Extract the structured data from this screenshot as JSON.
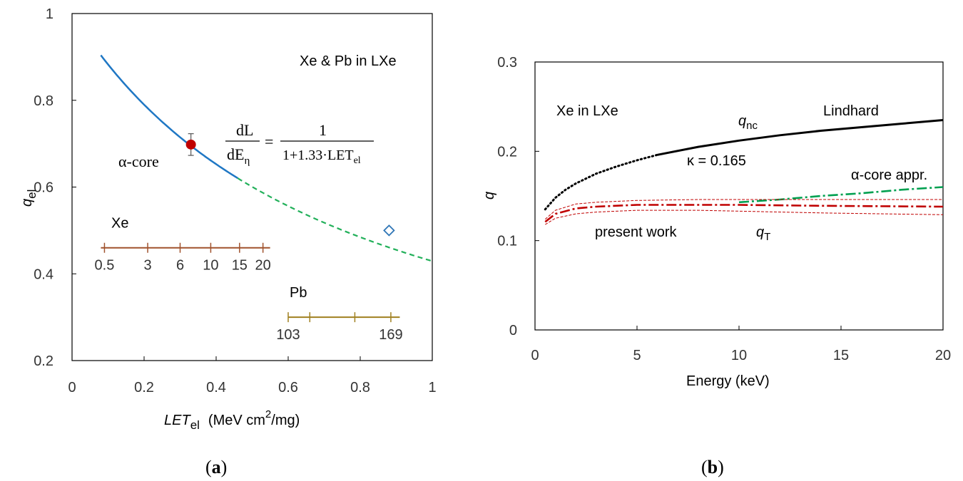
{
  "chart_data": [
    {
      "panel": "a",
      "type": "line",
      "caption": "(a)",
      "caption_letter": "a",
      "annotation": "Xe & Pb in LXe",
      "xlabel_main": "LET",
      "xlabel_sub": "el",
      "xlabel_units": "(MeV cm",
      "xlabel_units_sup": "2",
      "xlabel_units_end": "/mg)",
      "ylabel_main": "q",
      "ylabel_sub": "el",
      "xlim": [
        0,
        1
      ],
      "ylim": [
        0.2,
        1
      ],
      "xticks": [
        0,
        0.2,
        0.4,
        0.6,
        0.8,
        1
      ],
      "xtick_labels": [
        "0",
        "0.2",
        "0.4",
        "0.6",
        "0.8",
        "1"
      ],
      "yticks": [
        0.2,
        0.4,
        0.6,
        0.8,
        1
      ],
      "ytick_labels": [
        "0.2",
        "0.4",
        "0.6",
        "0.8",
        "1"
      ],
      "formula": {
        "lhs_num": "dL",
        "lhs_den": "dE",
        "lhs_den_sub": "η",
        "equals": "=",
        "rhs_num": "1",
        "rhs_den": "1+1.33·LET",
        "rhs_den_sub": "el"
      },
      "model": {
        "function": "1/(1+1.33*x)",
        "solid_range": [
          0.08,
          0.46
        ],
        "dashed_range": [
          0.46,
          1.0
        ]
      },
      "series": [
        {
          "name": "α-core",
          "label_text": "α-core",
          "type": "point",
          "x": 0.33,
          "y": 0.698,
          "err": 0.025,
          "color": "#c00000"
        },
        {
          "name": "open-diamond",
          "type": "point",
          "x": 0.88,
          "y": 0.5,
          "color": "#2e75b6"
        }
      ],
      "energy_scales": [
        {
          "label": "Xe",
          "y": 0.46,
          "x_start": 0.08,
          "x_end": 0.53,
          "ticks": [
            0.09,
            0.21,
            0.3,
            0.385,
            0.465,
            0.53
          ],
          "tick_labels": [
            {
              "text": "0.5",
              "x": 0.09
            },
            {
              "text": "3",
              "x": 0.21
            },
            {
              "text": "6",
              "x": 0.3
            },
            {
              "text": "10",
              "x": 0.385
            },
            {
              "text": "15",
              "x": 0.465
            },
            {
              "text": "20",
              "x": 0.53
            }
          ],
          "color": "#a0522d"
        },
        {
          "label": "Pb",
          "y": 0.3,
          "x_start": 0.6,
          "x_end": 0.89,
          "ticks": [
            0.6,
            0.66,
            0.785,
            0.885
          ],
          "tick_labels": [
            {
              "text": "103",
              "x": 0.6
            },
            {
              "text": "169",
              "x": 0.885
            }
          ],
          "color": "#a08020"
        }
      ]
    },
    {
      "panel": "b",
      "type": "line",
      "caption": "(b)",
      "caption_letter": "b",
      "annotation": "Xe in LXe",
      "xlabel": "Energy (keV)",
      "ylabel": "q",
      "xlim": [
        0,
        20
      ],
      "ylim": [
        0,
        0.3
      ],
      "xticks": [
        0,
        5,
        10,
        15,
        20
      ],
      "xtick_labels": [
        "0",
        "5",
        "10",
        "15",
        "20"
      ],
      "yticks": [
        0,
        0.1,
        0.2,
        0.3
      ],
      "ytick_labels": [
        "0",
        "0.1",
        "0.2",
        "0.3"
      ],
      "labels": {
        "lindhard": "Lindhard",
        "qnc_main": "q",
        "qnc_sub": "nc",
        "kappa": "κ = 0.165",
        "alpha_core": "α-core appr.",
        "present_work": "present work",
        "qt_main": "q",
        "qt_sub": "T"
      },
      "series": [
        {
          "name": "Lindhard dotted",
          "style": "dotted",
          "color": "#000000",
          "x": [
            0.5,
            1,
            1.5,
            2,
            3,
            4,
            5,
            6
          ],
          "y": [
            0.135,
            0.148,
            0.157,
            0.164,
            0.175,
            0.183,
            0.19,
            0.196
          ]
        },
        {
          "name": "Lindhard solid",
          "style": "solid",
          "color": "#000000",
          "x": [
            6,
            8,
            10,
            12,
            14,
            16,
            18,
            20
          ],
          "y": [
            0.196,
            0.205,
            0.212,
            0.218,
            0.223,
            0.227,
            0.231,
            0.235
          ]
        },
        {
          "name": "α-core appr.",
          "style": "dashdot",
          "color": "#00a050",
          "x": [
            10,
            12,
            14,
            16,
            18,
            20
          ],
          "y": [
            0.143,
            0.146,
            0.15,
            0.153,
            0.157,
            0.16
          ]
        },
        {
          "name": "present work upper",
          "style": "thin-dashed",
          "color": "#c00000",
          "x": [
            0.5,
            1,
            2,
            3,
            5,
            8,
            10,
            14,
            20
          ],
          "y": [
            0.124,
            0.134,
            0.141,
            0.143,
            0.145,
            0.146,
            0.146,
            0.146,
            0.146
          ]
        },
        {
          "name": "present work central",
          "style": "dashdot",
          "color": "#c00000",
          "x": [
            0.5,
            1,
            2,
            3,
            5,
            8,
            10,
            14,
            20
          ],
          "y": [
            0.121,
            0.13,
            0.136,
            0.138,
            0.14,
            0.14,
            0.14,
            0.139,
            0.138
          ]
        },
        {
          "name": "present work lower",
          "style": "thin-dashed",
          "color": "#c00000",
          "x": [
            0.5,
            1,
            2,
            3,
            5,
            8,
            10,
            14,
            20
          ],
          "y": [
            0.118,
            0.125,
            0.13,
            0.132,
            0.134,
            0.134,
            0.133,
            0.131,
            0.129
          ]
        }
      ]
    }
  ]
}
